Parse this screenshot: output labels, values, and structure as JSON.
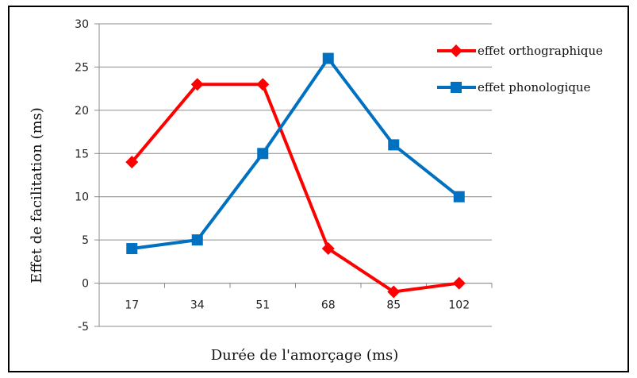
{
  "chart_data": {
    "type": "line",
    "title": "",
    "xlabel": "Durée de l'amorçage (ms)",
    "ylabel": "Effet de facilitation (ms)",
    "categories": [
      "17",
      "34",
      "51",
      "68",
      "85",
      "102"
    ],
    "ylim": [
      -5,
      30
    ],
    "yticks": [
      -5,
      0,
      5,
      10,
      15,
      20,
      25,
      30
    ],
    "grid": true,
    "legend_position": "right",
    "series": [
      {
        "name": "effet orthographique",
        "color": "#ff0000",
        "marker": "diamond",
        "values": [
          14,
          23,
          23,
          4,
          -1,
          0
        ]
      },
      {
        "name": "effet phonologique",
        "color": "#0070c0",
        "marker": "square",
        "values": [
          4,
          5,
          15,
          26,
          16,
          10
        ]
      }
    ]
  }
}
